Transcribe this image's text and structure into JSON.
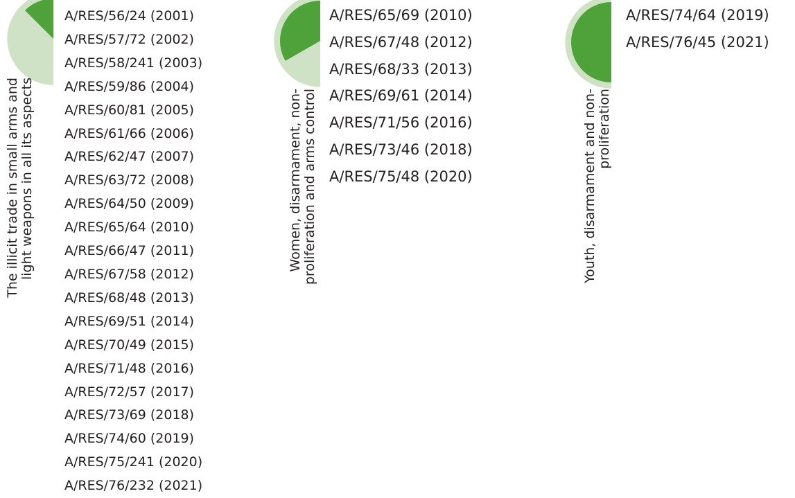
{
  "groups": [
    {
      "label": "The illicit trade in small arms and light weapons in all its aspects",
      "share": 0.125,
      "resolutions": [
        "A/RES/56/24 (2001)",
        "A/RES/57/72 (2002)",
        "A/RES/58/241 (2003)",
        "A/RES/59/86 (2004)",
        "A/RES/60/81 (2005)",
        "A/RES/61/66 (2006)",
        "A/RES/62/47 (2007)",
        "A/RES/63/72 (2008)",
        "A/RES/64/50 (2009)",
        "A/RES/65/64 (2010)",
        "A/RES/66/47 (2011)",
        "A/RES/67/58 (2012)",
        "A/RES/68/48 (2013)",
        "A/RES/69/51 (2014)",
        "A/RES/70/49 (2015)",
        "A/RES/71/48 (2016)",
        "A/RES/72/57 (2017)",
        "A/RES/73/69 (2018)",
        "A/RES/74/60 (2019)",
        "A/RES/75/241 (2020)",
        "A/RES/76/232 (2021)"
      ]
    },
    {
      "label": "Women, disarmament, non-proliferation and arms control",
      "share": 0.333,
      "resolutions": [
        "A/RES/65/69 (2010)",
        "A/RES/67/48 (2012)",
        "A/RES/68/33 (2013)",
        "A/RES/69/61 (2014)",
        "A/RES/71/56 (2016)",
        "A/RES/73/46 (2018)",
        "A/RES/75/48 (2020)"
      ]
    },
    {
      "label": "Youth, disarmament and non-proliferation",
      "share": 0.5,
      "resolutions": [
        "A/RES/74/64 (2019)",
        "A/RES/76/45 (2021)"
      ]
    }
  ],
  "colors": {
    "fill": "#4fa23a",
    "track": "#cfe2c6",
    "text": "#231f20"
  }
}
